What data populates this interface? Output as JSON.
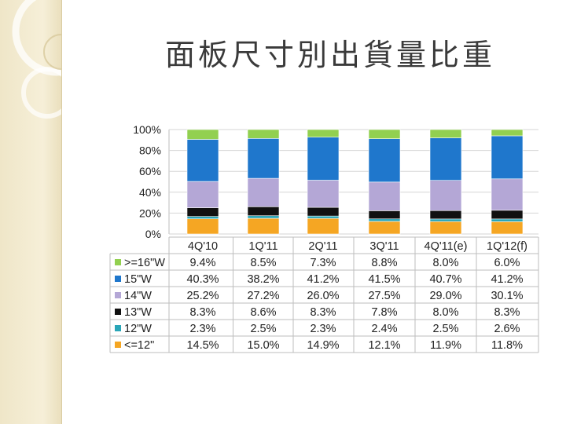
{
  "slide": {
    "title": "面板尺寸別出貨量比重"
  },
  "colors": {
    ">=16\"W": "#92d050",
    "15\"W": "#1f77cc",
    "14\"W": "#b4a7d6",
    "13\"W": "#111111",
    "12\"W": "#2aa6b8",
    "<=12\"": "#f5a623"
  },
  "chart_data": {
    "type": "bar",
    "stacked": true,
    "percent_stacked": true,
    "ylim": [
      0,
      100
    ],
    "y_ticks": [
      "100%",
      "80%",
      "60%",
      "40%",
      "20%",
      "0%"
    ],
    "categories": [
      "4Q'10",
      "1Q'11",
      "2Q'11",
      "3Q'11",
      "4Q'11(e)",
      "1Q'12(f)"
    ],
    "series": [
      {
        "name": ">=16\"W",
        "values": [
          9.4,
          8.5,
          7.3,
          8.8,
          8.0,
          6.0
        ],
        "labels": [
          "9.4%",
          "8.5%",
          "7.3%",
          "8.8%",
          "8.0%",
          "6.0%"
        ]
      },
      {
        "name": "15\"W",
        "values": [
          40.3,
          38.2,
          41.2,
          41.5,
          40.7,
          41.2
        ],
        "labels": [
          "40.3%",
          "38.2%",
          "41.2%",
          "41.5%",
          "40.7%",
          "41.2%"
        ]
      },
      {
        "name": "14\"W",
        "values": [
          25.2,
          27.2,
          26.0,
          27.5,
          29.0,
          30.1
        ],
        "labels": [
          "25.2%",
          "27.2%",
          "26.0%",
          "27.5%",
          "29.0%",
          "30.1%"
        ]
      },
      {
        "name": "13\"W",
        "values": [
          8.3,
          8.6,
          8.3,
          7.8,
          8.0,
          8.3
        ],
        "labels": [
          "8.3%",
          "8.6%",
          "8.3%",
          "7.8%",
          "8.0%",
          "8.3%"
        ]
      },
      {
        "name": "12\"W",
        "values": [
          2.3,
          2.5,
          2.3,
          2.4,
          2.5,
          2.6
        ],
        "labels": [
          "2.3%",
          "2.5%",
          "2.3%",
          "2.4%",
          "2.5%",
          "2.6%"
        ]
      },
      {
        "name": "<=12\"",
        "values": [
          14.5,
          15.0,
          14.9,
          12.1,
          11.9,
          11.8
        ],
        "labels": [
          "14.5%",
          "15.0%",
          "14.9%",
          "12.1%",
          "11.9%",
          "11.8%"
        ]
      }
    ]
  }
}
